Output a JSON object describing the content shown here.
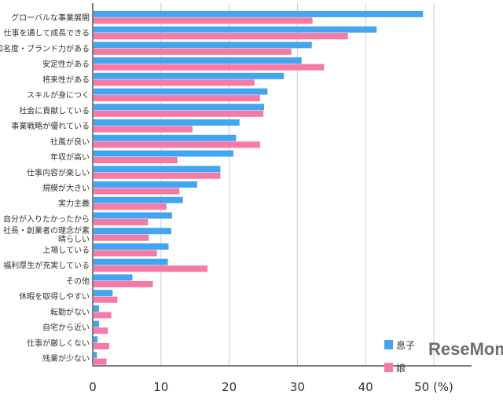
{
  "chart_data": {
    "type": "bar",
    "orientation": "horizontal",
    "categories": [
      "グローバルな事業展開",
      "仕事を通して成長できる",
      "知名度・ブランド力がある",
      "安定性がある",
      "将来性がある",
      "スキルが身につく",
      "社会に貢献している",
      "事業戦略が優れている",
      "社風が良い",
      "年収が高い",
      "仕事内容が楽しい",
      "規模が大きい",
      "実力主義",
      "自分が入りたかったから",
      "社長・創業者の理念が素晴らしい",
      "上場している",
      "福利厚生が充実している",
      "その他",
      "休暇を取得しやすい",
      "転勤がない",
      "自宅から近い",
      "仕事が厳しくない",
      "残業が少ない"
    ],
    "series": [
      {
        "name": "息子",
        "color": "#42a5f0",
        "values": [
          48.3,
          41.5,
          32.0,
          30.5,
          27.9,
          25.5,
          25.0,
          21.4,
          20.9,
          20.5,
          18.6,
          15.2,
          13.1,
          11.5,
          11.4,
          11.0,
          10.9,
          5.7,
          2.8,
          0.8,
          0.8,
          0.6,
          0.5
        ]
      },
      {
        "name": "娘",
        "color": "#f57aa6",
        "values": [
          32.1,
          37.3,
          29.0,
          33.8,
          23.6,
          24.4,
          24.9,
          14.5,
          24.4,
          12.3,
          18.6,
          12.6,
          10.7,
          8.0,
          8.1,
          9.3,
          16.7,
          8.7,
          3.5,
          2.6,
          2.1,
          2.3,
          1.9
        ]
      }
    ],
    "xlim": [
      0,
      50
    ],
    "xticks": [
      "0",
      "10",
      "20",
      "30",
      "40",
      "50"
    ],
    "xunit": "(%)",
    "grid": true,
    "legend_position": "bottom-right"
  },
  "watermark": "ReseMom"
}
